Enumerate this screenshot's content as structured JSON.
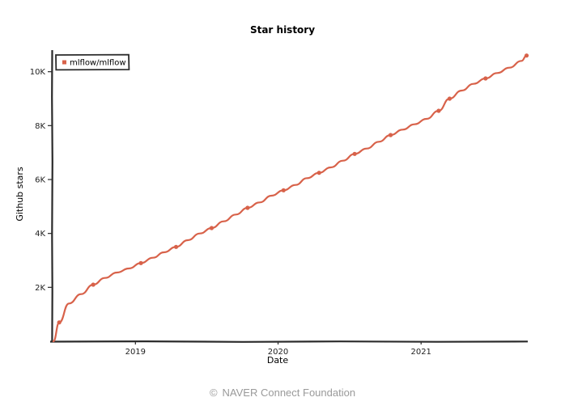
{
  "chart_data": {
    "type": "line",
    "title": "Star history",
    "xlabel": "Date",
    "ylabel": "Github stars",
    "x_ticks": [
      "2019",
      "2020",
      "2021"
    ],
    "y_ticks": [
      "2K",
      "4K",
      "6K",
      "8K",
      "10K"
    ],
    "y_tick_values": [
      2000,
      4000,
      6000,
      8000,
      10000
    ],
    "ylim": [
      0,
      10800
    ],
    "xlim": [
      "2018-06-01",
      "2021-10-01"
    ],
    "grid": false,
    "legend_position": "top-left",
    "series": [
      {
        "name": "mlflow/mlflow",
        "color": "#d8624a",
        "x": [
          "2018-06-05",
          "2018-06-20",
          "2018-07-15",
          "2018-08-15",
          "2018-09-15",
          "2018-10-15",
          "2018-11-15",
          "2018-12-15",
          "2019-01-15",
          "2019-02-15",
          "2019-03-15",
          "2019-04-15",
          "2019-05-15",
          "2019-06-15",
          "2019-07-15",
          "2019-08-15",
          "2019-09-15",
          "2019-10-15",
          "2019-11-15",
          "2019-12-15",
          "2020-01-15",
          "2020-02-15",
          "2020-03-15",
          "2020-04-15",
          "2020-05-15",
          "2020-06-15",
          "2020-07-15",
          "2020-08-15",
          "2020-09-15",
          "2020-10-15",
          "2020-11-15",
          "2020-12-15",
          "2021-01-15",
          "2021-02-15",
          "2021-03-15",
          "2021-04-15",
          "2021-05-15",
          "2021-06-15",
          "2021-07-15",
          "2021-08-15",
          "2021-09-15",
          "2021-09-28"
        ],
        "y": [
          0,
          700,
          1400,
          1750,
          2100,
          2350,
          2550,
          2700,
          2900,
          3100,
          3300,
          3500,
          3750,
          4000,
          4200,
          4450,
          4700,
          4950,
          5150,
          5400,
          5600,
          5800,
          6050,
          6250,
          6450,
          6700,
          6950,
          7150,
          7400,
          7650,
          7850,
          8050,
          8250,
          8550,
          9000,
          9300,
          9550,
          9750,
          9950,
          10150,
          10400,
          10600
        ],
        "marked": [
          false,
          true,
          false,
          false,
          true,
          false,
          false,
          false,
          true,
          false,
          false,
          true,
          false,
          false,
          true,
          false,
          false,
          true,
          false,
          false,
          true,
          false,
          false,
          true,
          false,
          false,
          true,
          false,
          false,
          true,
          false,
          false,
          false,
          true,
          true,
          false,
          false,
          true,
          false,
          false,
          false,
          true
        ]
      }
    ]
  },
  "footer": {
    "copyright_symbol": "©",
    "text": "NAVER Connect Foundation"
  }
}
